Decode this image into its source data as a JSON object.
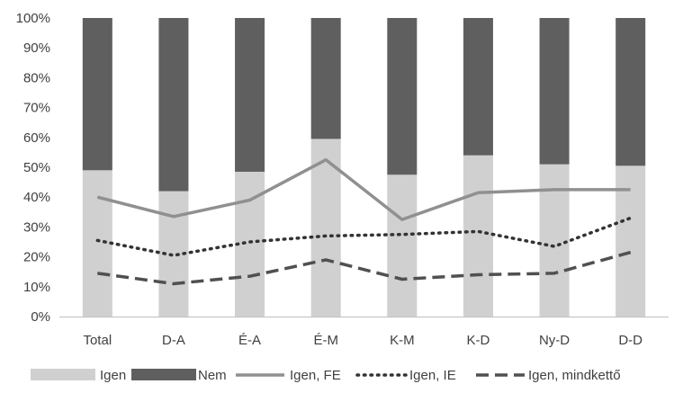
{
  "chart_data": {
    "type": "bar",
    "stacked": true,
    "percent_stacked": true,
    "categories": [
      "Total",
      "D-A",
      "É-A",
      "É-M",
      "K-M",
      "K-D",
      "Ny-D",
      "D-D"
    ],
    "ylim": [
      0,
      100
    ],
    "yticks": [
      "0%",
      "10%",
      "20%",
      "30%",
      "40%",
      "50%",
      "60%",
      "70%",
      "80%",
      "90%",
      "100%"
    ],
    "legend_position": "bottom",
    "grid": false,
    "bar_series": [
      {
        "name": "Igen",
        "color": "#d0d0d0",
        "values": [
          49,
          42,
          48.5,
          59.5,
          47.5,
          54,
          51,
          50.5
        ]
      },
      {
        "name": "Nem",
        "color": "#5f5f5f",
        "values": [
          51,
          58,
          51.5,
          40.5,
          52.5,
          46,
          49,
          49.5
        ]
      }
    ],
    "line_series": [
      {
        "name": "Igen, FE",
        "color": "#909090",
        "dash": "solid",
        "values": [
          40,
          33.5,
          39,
          52.5,
          32.5,
          41.5,
          42.5,
          42.5
        ]
      },
      {
        "name": "Igen, IE",
        "color": "#333333",
        "dash": "dotted",
        "values": [
          25.5,
          20.5,
          25,
          27,
          27.5,
          28.5,
          23.5,
          33
        ]
      },
      {
        "name": "Igen, mindkettő",
        "color": "#505050",
        "dash": "dashed",
        "values": [
          14.5,
          11,
          13.5,
          19,
          12.5,
          14,
          14.5,
          21.5
        ]
      }
    ]
  }
}
